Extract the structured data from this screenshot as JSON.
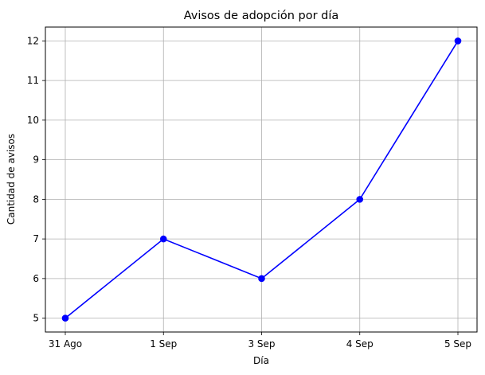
{
  "chart_data": {
    "type": "line",
    "title": "Avisos de adopción por día",
    "xlabel": "Día",
    "ylabel": "Cantidad de avisos",
    "categories": [
      "31 Ago",
      "1 Sep",
      "3 Sep",
      "4 Sep",
      "5 Sep"
    ],
    "series": [
      {
        "values": [
          5,
          7,
          6,
          8,
          12
        ],
        "color": "#0000ff",
        "marker": "circle"
      }
    ],
    "yticks": [
      5,
      6,
      7,
      8,
      9,
      10,
      11,
      12
    ],
    "ylim": [
      4.65,
      12.35
    ],
    "grid": true
  }
}
